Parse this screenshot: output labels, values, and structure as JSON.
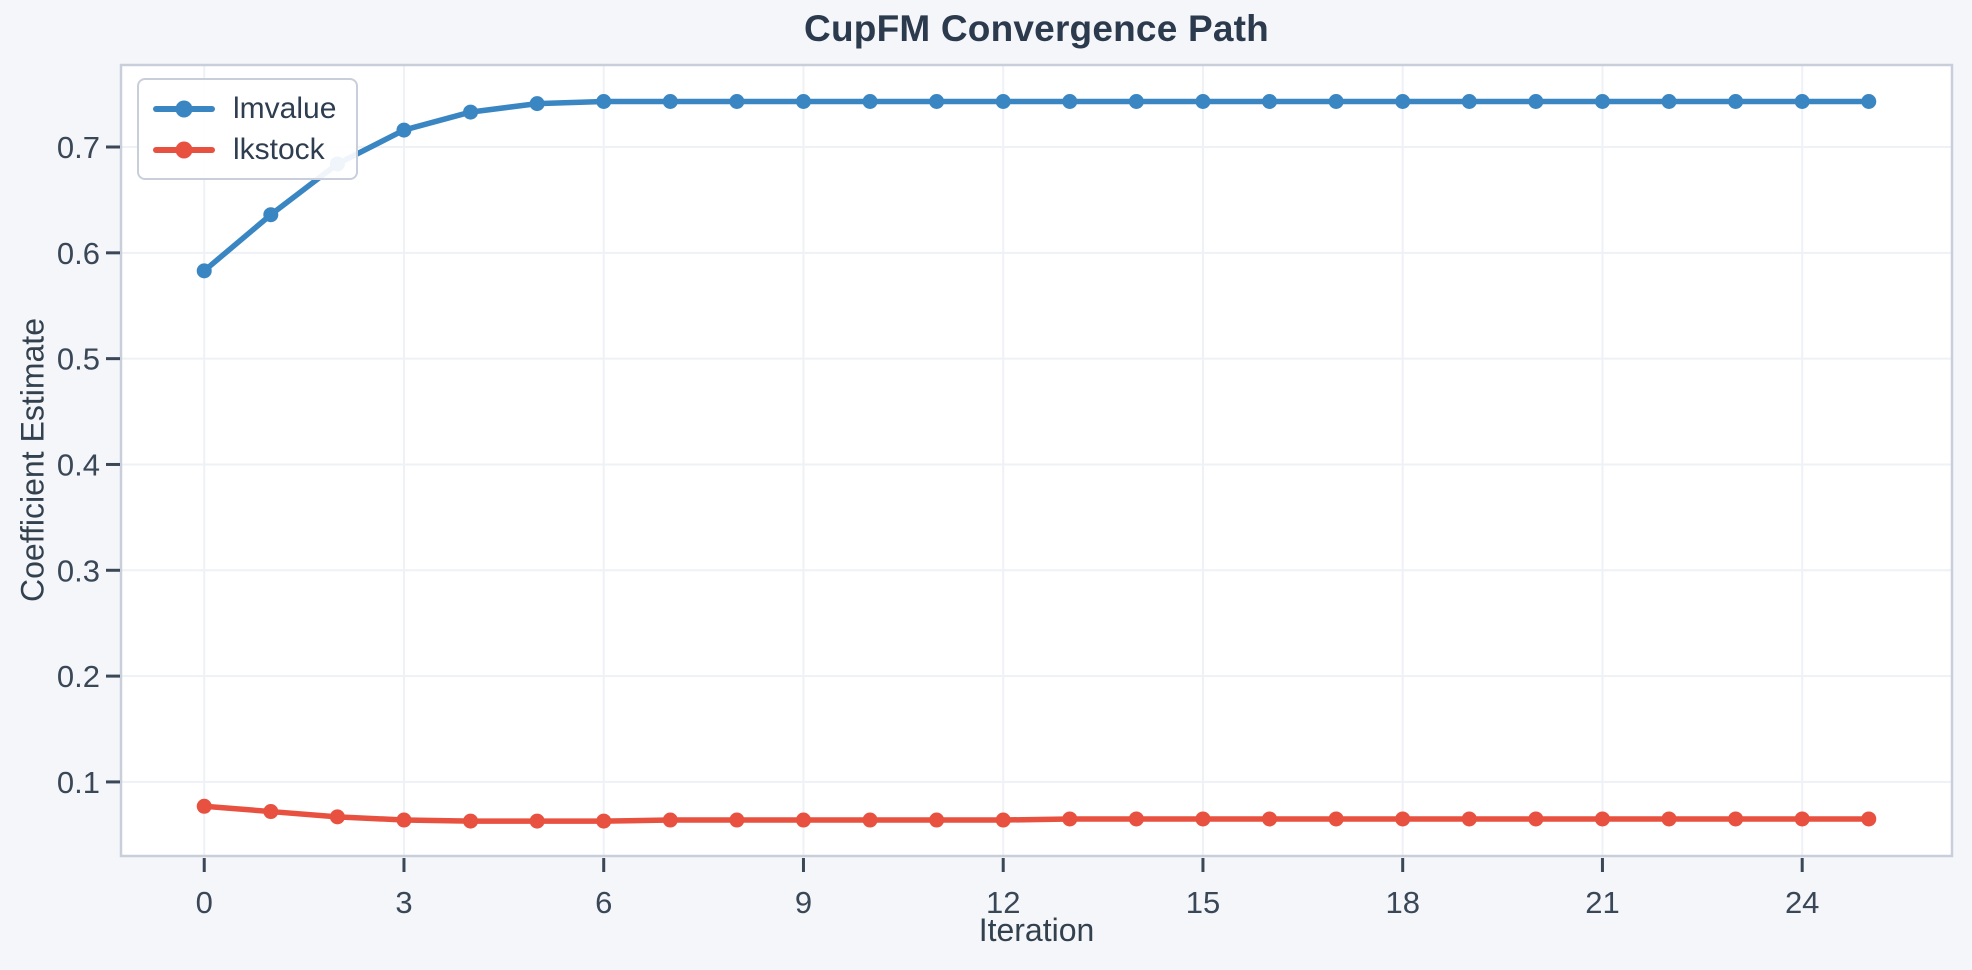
{
  "chart_data": {
    "type": "line",
    "title": "CupFM Convergence Path",
    "xlabel": "Iteration",
    "ylabel": "Coefficient Estimate",
    "x": [
      0,
      1,
      2,
      3,
      4,
      5,
      6,
      7,
      8,
      9,
      10,
      11,
      12,
      13,
      14,
      15,
      16,
      17,
      18,
      19,
      20,
      21,
      22,
      23,
      24,
      25
    ],
    "series": [
      {
        "name": "lmvalue",
        "color": "#3a86c2",
        "values": [
          0.583,
          0.636,
          0.684,
          0.716,
          0.733,
          0.741,
          0.743,
          0.743,
          0.743,
          0.743,
          0.743,
          0.743,
          0.743,
          0.743,
          0.743,
          0.743,
          0.743,
          0.743,
          0.743,
          0.743,
          0.743,
          0.743,
          0.743,
          0.743,
          0.743,
          0.743
        ]
      },
      {
        "name": "lkstock",
        "color": "#e8513f",
        "values": [
          0.077,
          0.072,
          0.067,
          0.064,
          0.063,
          0.063,
          0.063,
          0.064,
          0.064,
          0.064,
          0.064,
          0.064,
          0.064,
          0.065,
          0.065,
          0.065,
          0.065,
          0.065,
          0.065,
          0.065,
          0.065,
          0.065,
          0.065,
          0.065,
          0.065,
          0.065
        ]
      }
    ],
    "xlim": [
      -1.25,
      26.25
    ],
    "ylim": [
      0.03,
      0.7775
    ],
    "xticks": [
      0,
      3,
      6,
      9,
      12,
      15,
      18,
      21,
      24
    ],
    "yticks": [
      0.1,
      0.2,
      0.3,
      0.4,
      0.5,
      0.6,
      0.7
    ],
    "grid": true,
    "legend_position": "upper-left"
  },
  "theme": {
    "figure_bg": "#f4f6fa",
    "plot_bg": "#ffffff",
    "grid_color": "#eef1f6",
    "spine_color": "#c9cfda",
    "tick_color": "#3a4757",
    "tick_label_color": "#3a4757",
    "text_color": "#2e3d4f",
    "title_color": "#2c3a4d",
    "line_width": 5.5,
    "marker_radius": 7.5
  }
}
